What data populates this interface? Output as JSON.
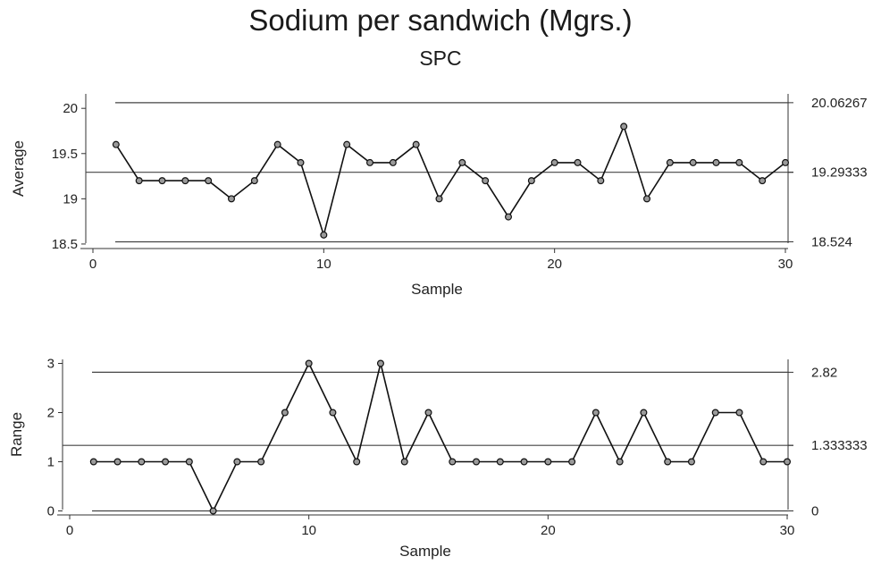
{
  "title": "Sodium per sandwich (Mgrs.)",
  "subtitle": "SPC",
  "chart_data": [
    {
      "type": "line",
      "ylabel": "Average",
      "xlabel": "Sample",
      "xlim": [
        0,
        30
      ],
      "ylim": [
        18.45,
        20.17
      ],
      "x_ticks": [
        "0",
        "10",
        "20",
        "30"
      ],
      "y_ticks": [
        "18.5",
        "19",
        "19.5",
        "20"
      ],
      "control_limits": {
        "ucl": {
          "value": 20.06267,
          "label": "20.06267"
        },
        "center": {
          "value": 19.29333,
          "label": "19.29333"
        },
        "lcl": {
          "value": 18.524,
          "label": "18.524"
        }
      },
      "x": [
        1,
        2,
        3,
        4,
        5,
        6,
        7,
        8,
        9,
        10,
        11,
        12,
        13,
        14,
        15,
        16,
        17,
        18,
        19,
        20,
        21,
        22,
        23,
        24,
        25,
        26,
        27,
        28,
        29,
        30
      ],
      "values": [
        19.6,
        19.2,
        19.2,
        19.2,
        19.2,
        19.0,
        19.2,
        19.6,
        19.4,
        18.6,
        19.6,
        19.4,
        19.4,
        19.6,
        19.0,
        19.4,
        19.2,
        18.8,
        19.2,
        19.4,
        19.4,
        19.2,
        19.8,
        19.0,
        19.4,
        19.4,
        19.4,
        19.4,
        19.2,
        19.4
      ],
      "grid": false
    },
    {
      "type": "line",
      "ylabel": "Range",
      "xlabel": "Sample",
      "xlim": [
        0,
        30
      ],
      "ylim": [
        -0.1,
        3.1
      ],
      "x_ticks": [
        "0",
        "10",
        "20",
        "30"
      ],
      "y_ticks": [
        "0",
        "1",
        "2",
        "3"
      ],
      "control_limits": {
        "ucl": {
          "value": 2.82,
          "label": "2.82"
        },
        "center": {
          "value": 1.333333,
          "label": "1.333333"
        },
        "lcl": {
          "value": 0,
          "label": "0"
        }
      },
      "x": [
        1,
        2,
        3,
        4,
        5,
        6,
        7,
        8,
        9,
        10,
        11,
        12,
        13,
        14,
        15,
        16,
        17,
        18,
        19,
        20,
        21,
        22,
        23,
        24,
        25,
        26,
        27,
        28,
        29,
        30
      ],
      "values": [
        1,
        1,
        1,
        1,
        1,
        0,
        1,
        1,
        2,
        3,
        2,
        1,
        3,
        1,
        2,
        1,
        1,
        1,
        1,
        1,
        1,
        2,
        1,
        2,
        1,
        1,
        2,
        2,
        1,
        1
      ],
      "grid": false
    }
  ]
}
